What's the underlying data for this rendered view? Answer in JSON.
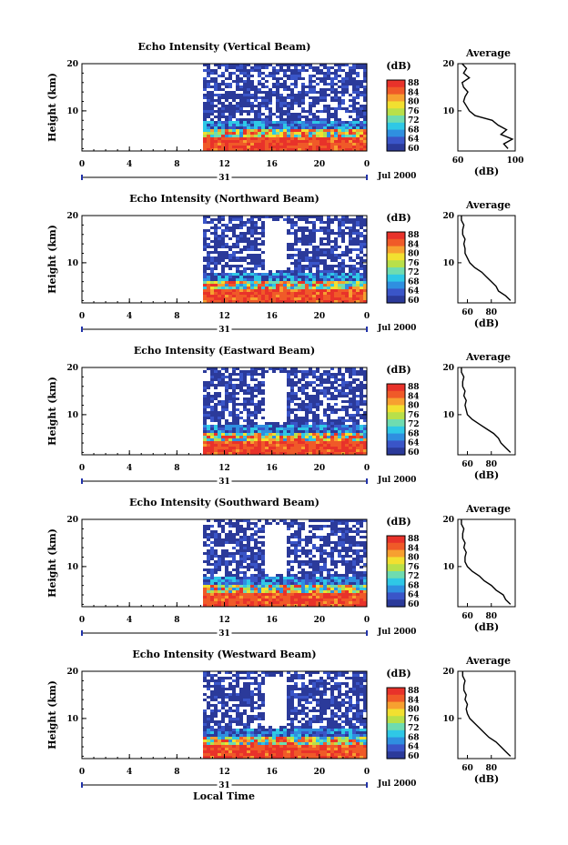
{
  "figure": {
    "xlabel_bottom": "Local Time",
    "date_label": "Jul 2000",
    "day_label": "31",
    "x_ticks": [
      "0",
      "4",
      "8",
      "12",
      "16",
      "20",
      "0"
    ],
    "height_ylabel": "Height (km)",
    "height_ticks": [
      "20",
      "10"
    ],
    "colorbar_label": "(dB)",
    "colorbar_ticks": [
      "88",
      "84",
      "80",
      "76",
      "72",
      "68",
      "64",
      "60"
    ],
    "average_title": "Average",
    "average_unit": "(dB)",
    "colors": {
      "scale": [
        "#2b3a9a",
        "#3a55c8",
        "#2f8fe0",
        "#2fc8e6",
        "#6fdcb0",
        "#b8e04a",
        "#f2e030",
        "#f7a030",
        "#f05a28",
        "#e8322a"
      ],
      "missing": "#ffffff"
    }
  },
  "chart_data": [
    {
      "type": "heatmap",
      "title": "Echo Intensity (Vertical Beam)",
      "x_range_hours": [
        0,
        24
      ],
      "data_start_hour": 10.2,
      "y_range_km": [
        1.5,
        20
      ],
      "color_range_db": [
        60,
        88
      ],
      "average_profile": {
        "x_ticks": [
          "60",
          "100"
        ],
        "x_range": [
          60,
          100
        ],
        "height_km": [
          2,
          3,
          4,
          5,
          6,
          7,
          8,
          9,
          10,
          11,
          12,
          13,
          14,
          15,
          16,
          17,
          18,
          19,
          20
        ],
        "db": [
          95,
          92,
          98,
          90,
          94,
          88,
          84,
          72,
          68,
          66,
          64,
          65,
          67,
          64,
          63,
          68,
          64,
          66,
          63
        ]
      }
    },
    {
      "type": "heatmap",
      "title": "Echo Intensity (Northward Beam)",
      "x_range_hours": [
        0,
        24
      ],
      "data_start_hour": 10.2,
      "y_range_km": [
        1.5,
        20
      ],
      "color_range_db": [
        60,
        88
      ],
      "average_profile": {
        "x_ticks": [
          "60",
          "80"
        ],
        "x_range": [
          52,
          100
        ],
        "height_km": [
          2,
          3,
          4,
          5,
          6,
          7,
          8,
          9,
          10,
          11,
          12,
          13,
          14,
          15,
          16,
          17,
          18,
          19,
          20
        ],
        "db": [
          96,
          92,
          86,
          84,
          80,
          76,
          72,
          66,
          62,
          60,
          58,
          58,
          57,
          58,
          56,
          56,
          57,
          55,
          55
        ]
      }
    },
    {
      "type": "heatmap",
      "title": "Echo Intensity (Eastward Beam)",
      "x_range_hours": [
        0,
        24
      ],
      "data_start_hour": 10.2,
      "y_range_km": [
        1.5,
        20
      ],
      "color_range_db": [
        60,
        88
      ],
      "average_profile": {
        "x_ticks": [
          "60",
          "80"
        ],
        "x_range": [
          52,
          100
        ],
        "height_km": [
          2,
          3,
          4,
          5,
          6,
          7,
          8,
          9,
          10,
          11,
          12,
          13,
          14,
          15,
          16,
          17,
          18,
          19,
          20
        ],
        "db": [
          96,
          92,
          88,
          86,
          82,
          76,
          70,
          64,
          60,
          59,
          58,
          59,
          57,
          58,
          56,
          56,
          57,
          55,
          55
        ]
      }
    },
    {
      "type": "heatmap",
      "title": "Echo Intensity (Southward Beam)",
      "x_range_hours": [
        0,
        24
      ],
      "data_start_hour": 10.2,
      "y_range_km": [
        1.5,
        20
      ],
      "color_range_db": [
        60,
        88
      ],
      "average_profile": {
        "x_ticks": [
          "60",
          "80"
        ],
        "x_range": [
          52,
          100
        ],
        "height_km": [
          2,
          3,
          4,
          5,
          6,
          7,
          8,
          9,
          10,
          11,
          12,
          13,
          14,
          15,
          16,
          17,
          18,
          19,
          20
        ],
        "db": [
          96,
          92,
          90,
          84,
          80,
          74,
          70,
          64,
          60,
          58,
          58,
          59,
          57,
          58,
          56,
          56,
          57,
          55,
          55
        ]
      }
    },
    {
      "type": "heatmap",
      "title": "Echo Intensity (Westward Beam)",
      "x_range_hours": [
        0,
        24
      ],
      "data_start_hour": 10.2,
      "y_range_km": [
        1.5,
        20
      ],
      "color_range_db": [
        60,
        88
      ],
      "average_profile": {
        "x_ticks": [
          "60",
          "80"
        ],
        "x_range": [
          52,
          100
        ],
        "height_km": [
          2,
          3,
          4,
          5,
          6,
          7,
          8,
          9,
          10,
          11,
          12,
          13,
          14,
          15,
          16,
          17,
          18,
          19,
          20
        ],
        "db": [
          96,
          92,
          88,
          84,
          78,
          74,
          70,
          66,
          62,
          60,
          59,
          60,
          58,
          59,
          57,
          57,
          58,
          56,
          56
        ]
      }
    }
  ]
}
